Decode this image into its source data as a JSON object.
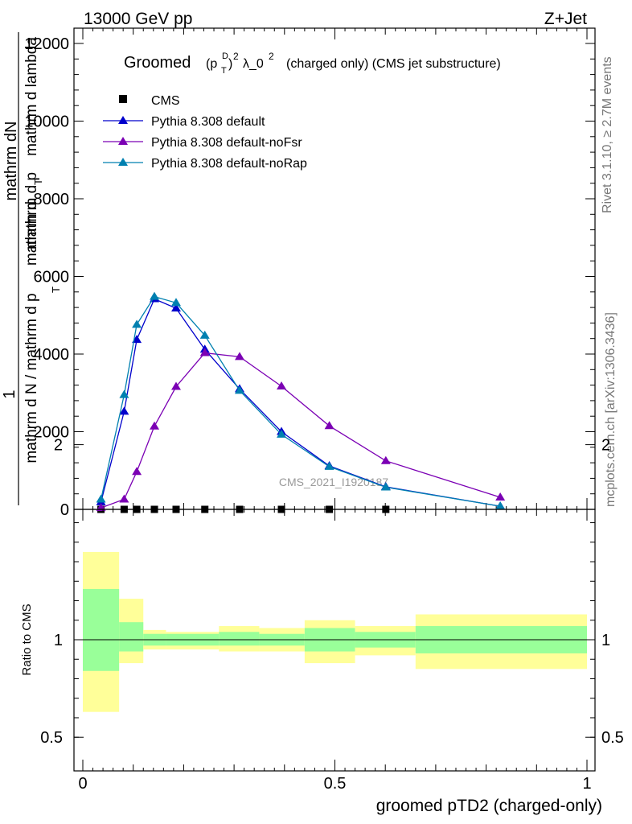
{
  "header": {
    "energy": "13000 GeV pp",
    "process": "Z+Jet",
    "rivet": "Rivet 3.1.10, ≥ 2.7M events",
    "source": "mcplots.cern.ch [arXiv:1306.3436]",
    "watermark": "CMS_2021_I1920187"
  },
  "chart_data": [
    {
      "type": "line",
      "title_main": "Groomed",
      "title_mid": "(p",
      "title_sup_D": "D",
      "title_sub_T": "T",
      "title_close": ")",
      "title_sup_2": "2",
      "title_lambda": "λ_0",
      "title_lambda_sup": "2",
      "title_tail": "(charged only) (CMS jet substructure)",
      "ylabel_num_1": "1",
      "ylabel_num_2": "mathrm dN",
      "ylabel_den_1": "mathrm d N / mathrm d p",
      "ylabel_den_1_sub": "T",
      "ylabel_den_2": "mathrm d p",
      "ylabel_den_2_sub": "T",
      "ylabel_den_3": "mathrm d lambda",
      "ylabel_den_mid": "mathrm d",
      "ylim": [
        0,
        12500
      ],
      "xlim": [
        0,
        1
      ],
      "yticks": [
        0,
        2000,
        4000,
        6000,
        8000,
        10000,
        12000
      ],
      "ytick_labels": [
        "0",
        "2000",
        "4000",
        "6000",
        "8000",
        "10000",
        "12000"
      ],
      "legend_position": "top-left",
      "series": [
        {
          "name": "CMS",
          "color": "#000000",
          "marker": "square",
          "x": [
            0.036,
            0.082,
            0.107,
            0.142,
            0.185,
            0.242,
            0.311,
            0.394,
            0.489,
            0.601
          ],
          "y": [
            0,
            0,
            0,
            0,
            0,
            0,
            0,
            0,
            0,
            0
          ]
        },
        {
          "name": "Pythia 8.308 default",
          "color": "#0000cc",
          "marker": "triangle",
          "x": [
            0.036,
            0.082,
            0.107,
            0.142,
            0.185,
            0.242,
            0.311,
            0.394,
            0.489,
            0.601,
            0.828
          ],
          "y": [
            190,
            2520,
            4370,
            5420,
            5180,
            4120,
            3100,
            2000,
            1120,
            580,
            80
          ]
        },
        {
          "name": "Pythia 8.308 default-noFsr",
          "color": "#7b00b4",
          "marker": "triangle",
          "x": [
            0.036,
            0.082,
            0.107,
            0.142,
            0.185,
            0.242,
            0.311,
            0.394,
            0.489,
            0.601,
            0.828
          ],
          "y": [
            40,
            260,
            970,
            2140,
            3160,
            4030,
            3930,
            3170,
            2150,
            1250,
            310
          ]
        },
        {
          "name": "Pythia 8.308 default-noRap",
          "color": "#0080b0",
          "marker": "triangle",
          "x": [
            0.036,
            0.082,
            0.107,
            0.142,
            0.185,
            0.242,
            0.311,
            0.394,
            0.489,
            0.601,
            0.828
          ],
          "y": [
            260,
            2950,
            4760,
            5480,
            5320,
            4480,
            3060,
            1930,
            1100,
            570,
            80
          ]
        }
      ]
    },
    {
      "type": "area",
      "ylabel": "Ratio to CMS",
      "xlabel": "groomed pTD2 (charged-only)",
      "xlim": [
        0,
        1
      ],
      "ylim": [
        0.35,
        2.3
      ],
      "xticks": [
        0,
        0.5,
        1
      ],
      "xtick_labels": [
        "0",
        "0.5",
        "1"
      ],
      "yticks": [
        0.5,
        1,
        2
      ],
      "ytick_labels": [
        "0.5",
        "1",
        "2"
      ],
      "bands": {
        "colors": {
          "outer": "#ffff99",
          "inner": "#99ff99"
        },
        "bins": [
          {
            "x0": 0.0,
            "x1": 0.072,
            "outer": [
              0.63,
              1.45
            ],
            "inner": [
              0.84,
              1.26
            ]
          },
          {
            "x0": 0.072,
            "x1": 0.12,
            "outer": [
              0.88,
              1.21
            ],
            "inner": [
              0.94,
              1.09
            ]
          },
          {
            "x0": 0.12,
            "x1": 0.165,
            "outer": [
              0.95,
              1.05
            ],
            "inner": [
              0.97,
              1.03
            ]
          },
          {
            "x0": 0.165,
            "x1": 0.27,
            "outer": [
              0.95,
              1.04
            ],
            "inner": [
              0.97,
              1.03
            ]
          },
          {
            "x0": 0.27,
            "x1": 0.35,
            "outer": [
              0.94,
              1.07
            ],
            "inner": [
              0.97,
              1.04
            ]
          },
          {
            "x0": 0.35,
            "x1": 0.44,
            "outer": [
              0.94,
              1.06
            ],
            "inner": [
              0.97,
              1.03
            ]
          },
          {
            "x0": 0.44,
            "x1": 0.54,
            "outer": [
              0.88,
              1.1
            ],
            "inner": [
              0.94,
              1.06
            ]
          },
          {
            "x0": 0.54,
            "x1": 0.66,
            "outer": [
              0.92,
              1.07
            ],
            "inner": [
              0.96,
              1.04
            ]
          },
          {
            "x0": 0.66,
            "x1": 1.0,
            "outer": [
              0.85,
              1.13
            ],
            "inner": [
              0.93,
              1.07
            ]
          }
        ]
      }
    }
  ]
}
